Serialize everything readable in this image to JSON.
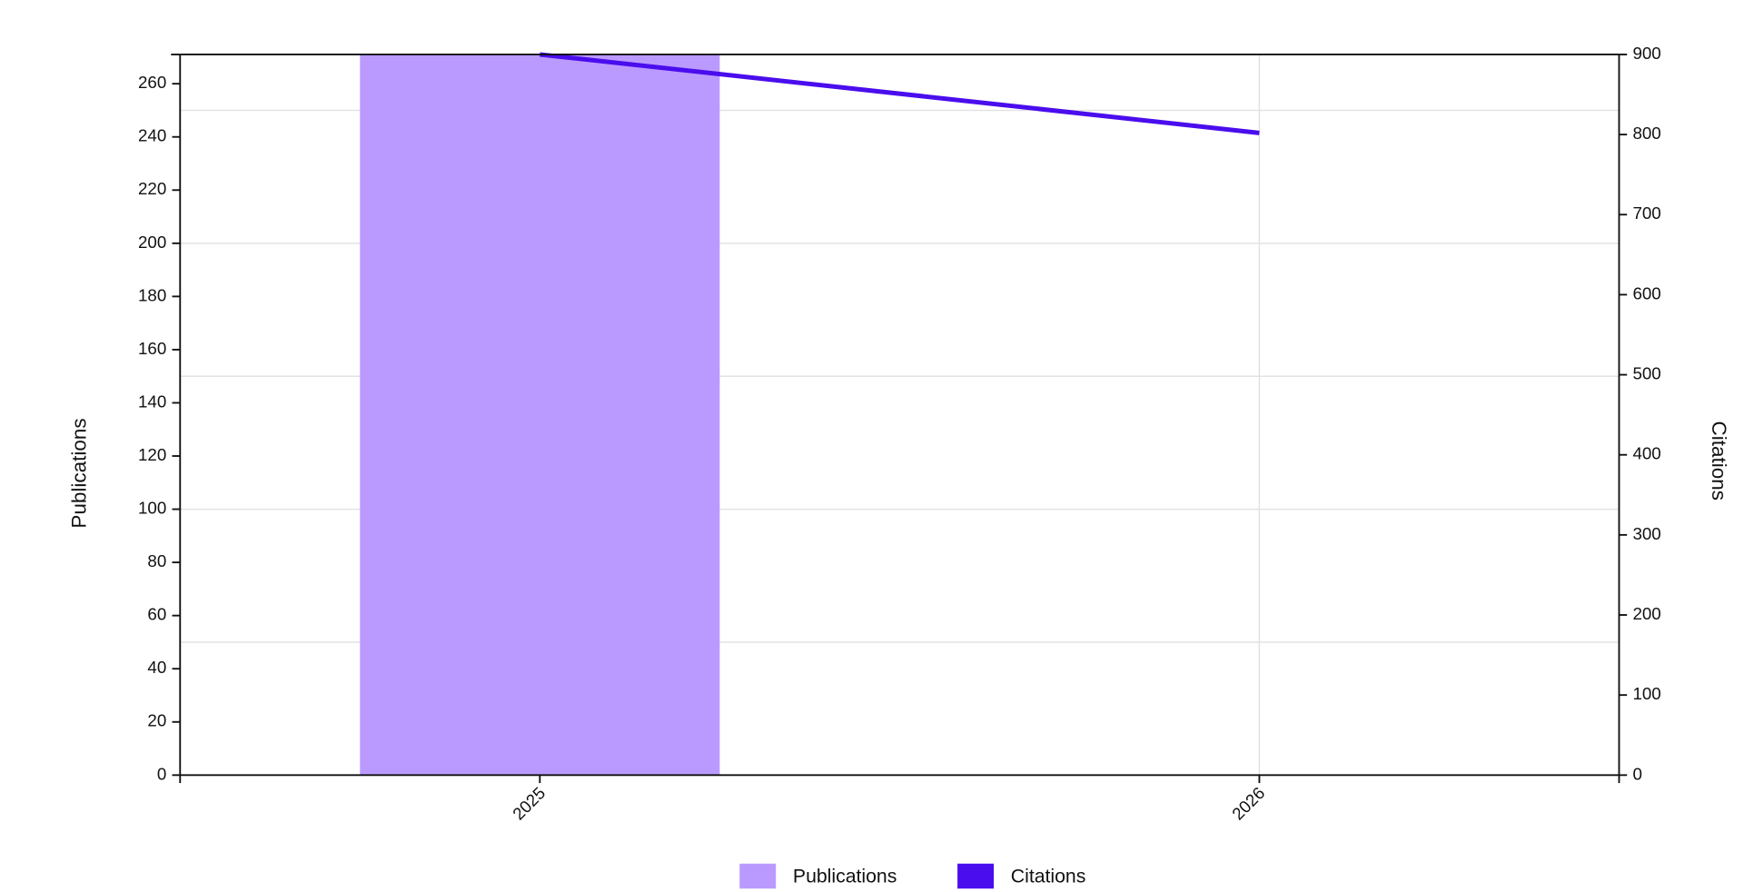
{
  "chart_data": {
    "type": "bar",
    "categories": [
      "2025",
      "2026"
    ],
    "series": [
      {
        "name": "Publications",
        "color": "#bb9aff",
        "values": [
          271,
          0
        ],
        "type": "bar"
      },
      {
        "name": "Citations",
        "color": "#4a0ded",
        "values": [
          900,
          802
        ],
        "type": "line",
        "axis": "y2"
      }
    ],
    "y_label": "Publications",
    "y2_label": "Citations",
    "ylim": [
      0,
      271
    ],
    "yticks": [
      0,
      20,
      40,
      60,
      80,
      100,
      120,
      140,
      160,
      180,
      200,
      220,
      240,
      260
    ],
    "ygrid": [
      50,
      100,
      150,
      200,
      250
    ],
    "y2lim": [
      0,
      900
    ],
    "y2ticks": [
      0,
      100,
      200,
      300,
      400,
      500,
      600,
      700,
      800,
      900
    ],
    "grid": true,
    "legend": "bottom"
  }
}
